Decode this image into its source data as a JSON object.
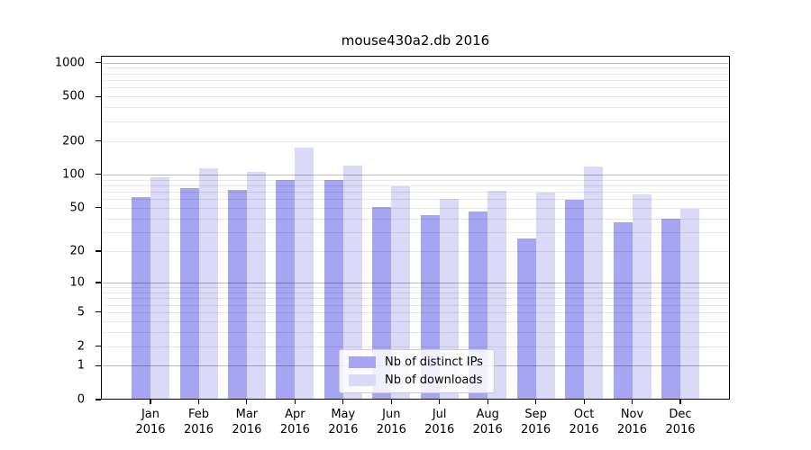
{
  "chart_data": {
    "type": "bar",
    "title": "mouse430a2.db 2016",
    "xlabel": "",
    "ylabel": "",
    "yscale": "log(1+x)",
    "ylim": [
      0,
      1150
    ],
    "grid": "on",
    "legend_position": "lower-center-inside",
    "categories": [
      {
        "month": "Jan",
        "year": "2016"
      },
      {
        "month": "Feb",
        "year": "2016"
      },
      {
        "month": "Mar",
        "year": "2016"
      },
      {
        "month": "Apr",
        "year": "2016"
      },
      {
        "month": "May",
        "year": "2016"
      },
      {
        "month": "Jun",
        "year": "2016"
      },
      {
        "month": "Jul",
        "year": "2016"
      },
      {
        "month": "Aug",
        "year": "2016"
      },
      {
        "month": "Sep",
        "year": "2016"
      },
      {
        "month": "Oct",
        "year": "2016"
      },
      {
        "month": "Nov",
        "year": "2016"
      },
      {
        "month": "Dec",
        "year": "2016"
      }
    ],
    "yticks": [
      {
        "label": "0",
        "value": 0
      },
      {
        "label": "1",
        "value": 1
      },
      {
        "label": "2",
        "value": 2
      },
      {
        "label": "5",
        "value": 5
      },
      {
        "label": "10",
        "value": 10
      },
      {
        "label": "20",
        "value": 20
      },
      {
        "label": "50",
        "value": 50
      },
      {
        "label": "100",
        "value": 100
      },
      {
        "label": "200",
        "value": 200
      },
      {
        "label": "500",
        "value": 500
      },
      {
        "label": "1000",
        "value": 1000
      }
    ],
    "minor_grid_values": [
      2,
      3,
      4,
      5,
      6,
      7,
      8,
      9,
      20,
      30,
      40,
      50,
      60,
      70,
      80,
      90,
      200,
      300,
      400,
      500,
      600,
      700,
      800,
      900
    ],
    "major_grid_values": [
      1,
      10,
      100,
      1000
    ],
    "series": [
      {
        "name": "Nb of distinct IPs",
        "color": "#a5a5f2",
        "values": [
          63,
          76,
          73,
          90,
          90,
          51,
          43,
          46,
          26,
          59,
          37,
          40
        ]
      },
      {
        "name": "Nb of downloads",
        "color": "#dadaf8",
        "values": [
          95,
          114,
          105,
          175,
          120,
          78,
          60,
          72,
          69,
          118,
          66,
          49
        ]
      }
    ]
  }
}
